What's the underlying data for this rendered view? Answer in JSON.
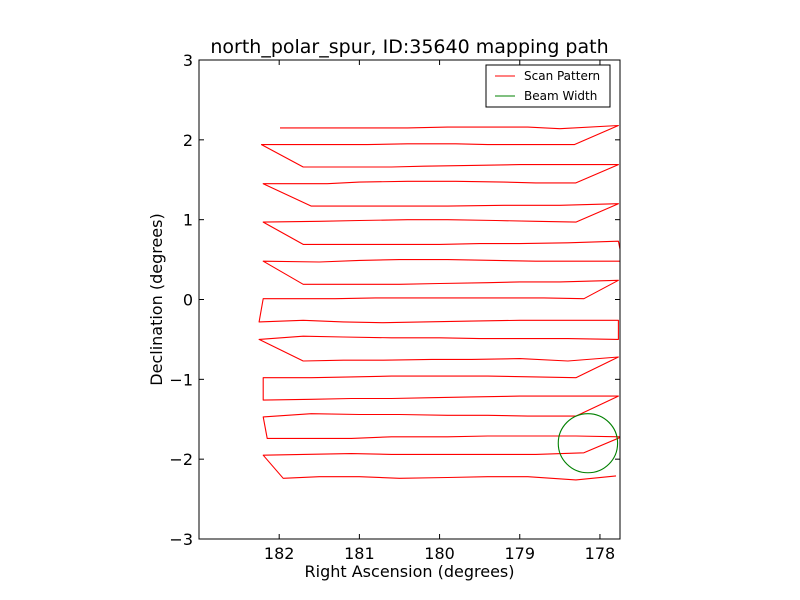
{
  "chart_data": {
    "type": "line",
    "title": "north_polar_spur, ID:35640 mapping path",
    "xlabel": "Right Ascension (degrees)",
    "ylabel": "Declination (degrees)",
    "xlim": [
      183.0,
      177.75
    ],
    "ylim": [
      -3,
      3
    ],
    "x_inverted": true,
    "xticks": [
      182,
      181,
      180,
      179,
      178
    ],
    "xtick_labels": [
      "182",
      "181",
      "180",
      "179",
      "178"
    ],
    "yticks": [
      -3,
      -2,
      -1,
      0,
      1,
      2,
      3
    ],
    "ytick_labels": [
      "−3",
      "−2",
      "−1",
      "0",
      "1",
      "2",
      "3"
    ],
    "grid": false,
    "legend_position": "top-right",
    "series": [
      {
        "name": "Scan Pattern",
        "color": "#ff0000",
        "type": "line",
        "x": [
          181.99,
          181.4,
          180.9,
          180.4,
          179.9,
          179.4,
          178.9,
          178.5,
          177.77,
          178.32,
          178.8,
          179.4,
          179.8,
          180.4,
          180.9,
          181.4,
          182.22,
          181.7,
          181.2,
          180.6,
          180.2,
          179.6,
          179.0,
          178.6,
          177.77,
          178.3,
          178.8,
          179.2,
          179.8,
          180.4,
          181.0,
          181.4,
          182.2,
          181.6,
          181.1,
          180.5,
          179.9,
          179.2,
          178.9,
          178.5,
          177.77,
          178.3,
          178.8,
          179.3,
          179.9,
          180.4,
          181.0,
          181.5,
          182.2,
          181.7,
          181.2,
          180.5,
          180.0,
          179.5,
          179.0,
          178.4,
          177.77,
          177.72,
          178.2,
          178.8,
          179.3,
          179.9,
          180.5,
          181.0,
          181.5,
          182.2,
          181.7,
          181.0,
          180.5,
          180.0,
          179.4,
          179.0,
          178.5,
          177.77,
          178.2,
          178.7,
          179.1,
          179.7,
          180.3,
          180.8,
          181.3,
          182.2,
          182.25,
          181.7,
          181.2,
          180.7,
          180.2,
          179.6,
          179.0,
          178.5,
          177.77,
          177.77,
          178.4,
          179.0,
          179.5,
          180.0,
          180.6,
          181.2,
          181.7,
          182.25,
          181.7,
          181.2,
          180.7,
          180.1,
          179.6,
          179.0,
          178.4,
          177.77,
          178.3,
          178.8,
          179.4,
          180.0,
          180.6,
          181.1,
          181.6,
          182.2,
          182.2,
          181.6,
          181.1,
          180.6,
          180.1,
          179.6,
          179.0,
          178.5,
          177.77,
          178.3,
          178.9,
          179.4,
          179.9,
          180.5,
          181.0,
          181.6,
          182.2,
          182.15,
          181.6,
          181.1,
          180.6,
          179.9,
          179.4,
          178.8,
          178.3,
          177.73,
          178.2,
          178.8,
          179.4,
          180.0,
          180.6,
          181.1,
          181.7,
          182.2,
          181.95,
          181.5,
          181.0,
          180.5,
          179.9,
          179.4,
          178.9,
          178.3,
          177.8
        ],
        "y": [
          2.15,
          2.15,
          2.15,
          2.15,
          2.16,
          2.16,
          2.16,
          2.14,
          2.18,
          1.94,
          1.94,
          1.94,
          1.95,
          1.95,
          1.94,
          1.94,
          1.94,
          1.66,
          1.66,
          1.66,
          1.67,
          1.68,
          1.69,
          1.69,
          1.69,
          1.46,
          1.46,
          1.47,
          1.48,
          1.48,
          1.47,
          1.45,
          1.45,
          1.17,
          1.17,
          1.17,
          1.17,
          1.18,
          1.18,
          1.18,
          1.2,
          0.97,
          0.98,
          0.99,
          1.0,
          1.0,
          0.99,
          0.98,
          0.97,
          0.69,
          0.69,
          0.69,
          0.69,
          0.7,
          0.7,
          0.71,
          0.73,
          0.48,
          0.48,
          0.48,
          0.49,
          0.5,
          0.5,
          0.49,
          0.47,
          0.48,
          0.19,
          0.19,
          0.19,
          0.2,
          0.21,
          0.22,
          0.22,
          0.24,
          0.01,
          0.02,
          0.02,
          0.02,
          0.02,
          0.02,
          0.01,
          0.01,
          -0.28,
          -0.26,
          -0.28,
          -0.29,
          -0.28,
          -0.27,
          -0.26,
          -0.26,
          -0.26,
          -0.5,
          -0.49,
          -0.49,
          -0.49,
          -0.48,
          -0.48,
          -0.47,
          -0.46,
          -0.5,
          -0.77,
          -0.76,
          -0.76,
          -0.75,
          -0.75,
          -0.74,
          -0.77,
          -0.72,
          -0.98,
          -0.97,
          -0.96,
          -0.96,
          -0.96,
          -0.97,
          -0.98,
          -0.98,
          -1.26,
          -1.25,
          -1.24,
          -1.24,
          -1.23,
          -1.22,
          -1.21,
          -1.21,
          -1.21,
          -1.46,
          -1.46,
          -1.45,
          -1.45,
          -1.44,
          -1.44,
          -1.43,
          -1.47,
          -1.74,
          -1.74,
          -1.74,
          -1.72,
          -1.72,
          -1.71,
          -1.71,
          -1.71,
          -1.72,
          -1.92,
          -1.94,
          -1.94,
          -1.94,
          -1.94,
          -1.93,
          -1.94,
          -1.95,
          -2.24,
          -2.22,
          -2.22,
          -2.24,
          -2.23,
          -2.22,
          -2.22,
          -2.26,
          -2.21
        ]
      },
      {
        "name": "Beam Width",
        "color": "#008000",
        "type": "circle",
        "center": [
          178.15,
          -1.8
        ],
        "radius": 0.37
      }
    ]
  }
}
